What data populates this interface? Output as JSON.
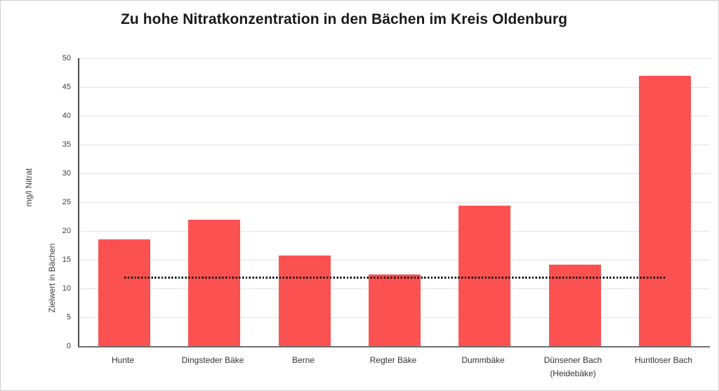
{
  "chart_data": {
    "type": "bar",
    "title": "Zu hohe Nitratkonzentration in den Bächen im Kreis Oldenburg",
    "categories": [
      "Hunte",
      "Dingsteder Bäke",
      "Berne",
      "Regter Bäke",
      "Dummbäke",
      "Dünsener Bach (Heidebäke)",
      "Huntloser Bach"
    ],
    "values": [
      18.5,
      22,
      15.7,
      12.5,
      24.4,
      14.1,
      46.9
    ],
    "ylabel": "mg/l Nitrat",
    "yticks": [
      0,
      5,
      10,
      15,
      20,
      25,
      30,
      35,
      40,
      45,
      50
    ],
    "ylim": [
      0,
      50
    ],
    "grid": true,
    "legend_position": "none",
    "target_line": {
      "label": "Zielwert in Bächen",
      "value": 12,
      "style": "dotted",
      "color": "#141414"
    },
    "bar_color": "#fc5151",
    "gridline_color": "#e2e2e2",
    "axis_color": "#4d4d4d"
  }
}
